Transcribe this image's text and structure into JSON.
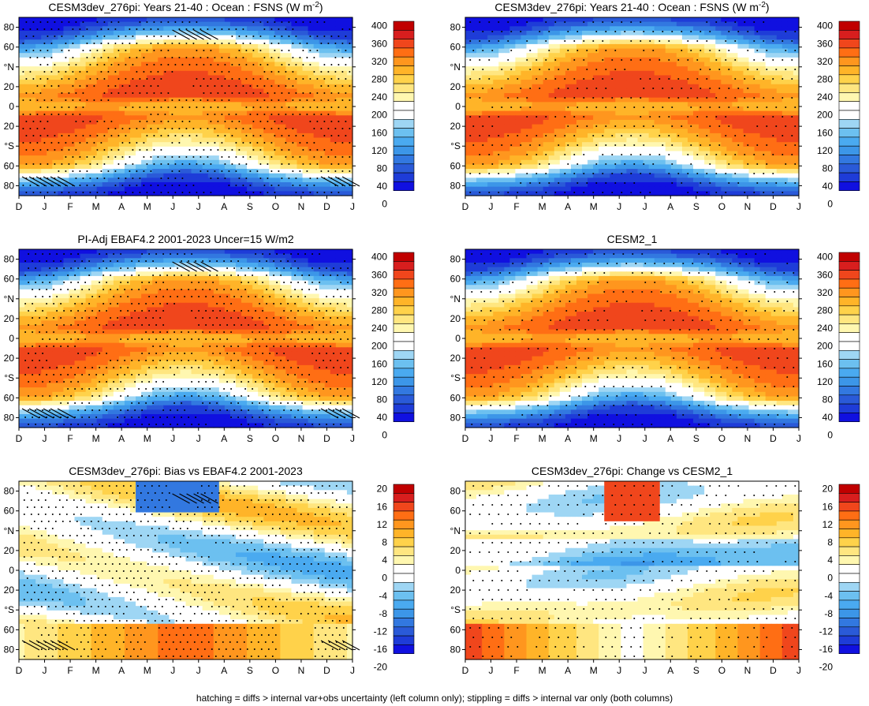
{
  "footnote": "hatching = diffs > internal var+obs uncertainty (left column only); stippling = diffs > internal var only (both columns)",
  "chart_data": [
    {
      "type": "heatmap",
      "name": "model-years",
      "title_main": "CESM3dev_276pi: Years 21-40 : Ocean : FSNS (W m",
      "title_sup": "-2",
      "title_end": ")",
      "months": [
        "D",
        "J",
        "F",
        "M",
        "A",
        "M",
        "J",
        "J",
        "A",
        "S",
        "O",
        "N",
        "D",
        "J"
      ],
      "lat_ticks": [
        "80",
        "60",
        "°N",
        "20",
        "0",
        "20",
        "°S",
        "60",
        "80"
      ],
      "lat_values": [
        80,
        60,
        40,
        20,
        0,
        -20,
        -40,
        -60,
        -80
      ],
      "cbar_labels": [
        "400",
        "360",
        "320",
        "280",
        "240",
        "200",
        "160",
        "120",
        "80",
        "40",
        "0"
      ],
      "stipple": "heavy",
      "hatch": true,
      "variant": "abs"
    },
    {
      "type": "heatmap",
      "name": "model-years-right",
      "title_main": "CESM3dev_276pi: Years 21-40 : Ocean : FSNS (W m",
      "title_sup": "-2",
      "title_end": ")",
      "months": [
        "D",
        "J",
        "F",
        "M",
        "A",
        "M",
        "J",
        "J",
        "A",
        "S",
        "O",
        "N",
        "D",
        "J"
      ],
      "lat_ticks": [
        "80",
        "60",
        "°N",
        "20",
        "0",
        "20",
        "°S",
        "60",
        "80"
      ],
      "lat_values": [
        80,
        60,
        40,
        20,
        0,
        -20,
        -40,
        -60,
        -80
      ],
      "cbar_labels": [
        "400",
        "360",
        "320",
        "280",
        "240",
        "200",
        "160",
        "120",
        "80",
        "40",
        "0"
      ],
      "stipple": "light",
      "hatch": false,
      "variant": "abs"
    },
    {
      "type": "heatmap",
      "name": "obs",
      "title_main": "PI-Adj EBAF4.2 2001-2023 Uncer=15 W/m2",
      "title_sup": "",
      "title_end": "",
      "months": [
        "D",
        "J",
        "F",
        "M",
        "A",
        "M",
        "J",
        "J",
        "A",
        "S",
        "O",
        "N",
        "D",
        "J"
      ],
      "lat_ticks": [
        "80",
        "60",
        "°N",
        "20",
        "0",
        "20",
        "°S",
        "60",
        "80"
      ],
      "lat_values": [
        80,
        60,
        40,
        20,
        0,
        -20,
        -40,
        -60,
        -80
      ],
      "cbar_labels": [
        "400",
        "360",
        "320",
        "280",
        "240",
        "200",
        "160",
        "120",
        "80",
        "40",
        "0"
      ],
      "stipple": "heavy",
      "hatch": true,
      "variant": "abs"
    },
    {
      "type": "heatmap",
      "name": "cesm2",
      "title_main": "CESM2_1",
      "title_sup": "",
      "title_end": "",
      "months": [
        "D",
        "J",
        "F",
        "M",
        "A",
        "M",
        "J",
        "J",
        "A",
        "S",
        "O",
        "N",
        "D",
        "J"
      ],
      "lat_ticks": [
        "80",
        "60",
        "°N",
        "20",
        "0",
        "20",
        "°S",
        "60",
        "80"
      ],
      "lat_values": [
        80,
        60,
        40,
        20,
        0,
        -20,
        -40,
        -60,
        -80
      ],
      "cbar_labels": [
        "400",
        "360",
        "320",
        "280",
        "240",
        "200",
        "160",
        "120",
        "80",
        "40",
        "0"
      ],
      "stipple": "light",
      "hatch": false,
      "variant": "abs"
    },
    {
      "type": "heatmap",
      "name": "bias",
      "title_main": "CESM3dev_276pi: Bias vs EBAF4.2 2001-2023",
      "title_sup": "",
      "title_end": "",
      "months": [
        "D",
        "J",
        "F",
        "M",
        "A",
        "M",
        "J",
        "J",
        "A",
        "S",
        "O",
        "N",
        "D",
        "J"
      ],
      "lat_ticks": [
        "80",
        "60",
        "°N",
        "20",
        "0",
        "20",
        "°S",
        "60",
        "80"
      ],
      "lat_values": [
        80,
        60,
        40,
        20,
        0,
        -20,
        -40,
        -60,
        -80
      ],
      "cbar_labels": [
        "20",
        "16",
        "12",
        "8",
        "4",
        "0",
        "-4",
        "-8",
        "-12",
        "-16",
        "-20"
      ],
      "stipple": "heavy",
      "hatch": true,
      "variant": "bias"
    },
    {
      "type": "heatmap",
      "name": "change",
      "title_main": "CESM3dev_276pi: Change vs CESM2_1",
      "title_sup": "",
      "title_end": "",
      "months": [
        "D",
        "J",
        "F",
        "M",
        "A",
        "M",
        "J",
        "J",
        "A",
        "S",
        "O",
        "N",
        "D",
        "J"
      ],
      "lat_ticks": [
        "80",
        "60",
        "°N",
        "20",
        "0",
        "20",
        "°S",
        "60",
        "80"
      ],
      "lat_values": [
        80,
        60,
        40,
        20,
        0,
        -20,
        -40,
        -60,
        -80
      ],
      "cbar_labels": [
        "20",
        "16",
        "12",
        "8",
        "4",
        "0",
        "-4",
        "-8",
        "-12",
        "-16",
        "-20"
      ],
      "stipple": "light",
      "hatch": false,
      "variant": "change"
    }
  ],
  "colors": [
    "#1010e0",
    "#1e3cd8",
    "#2a5ad8",
    "#3278e0",
    "#3c96e8",
    "#4aaaf0",
    "#6cc0f0",
    "#9ed6f4",
    "#ffffff",
    "#ffffff",
    "#fff7b0",
    "#ffe680",
    "#ffd24a",
    "#ffb428",
    "#ff961e",
    "#ff6e14",
    "#f0461c",
    "#d81e1e",
    "#c00000"
  ]
}
